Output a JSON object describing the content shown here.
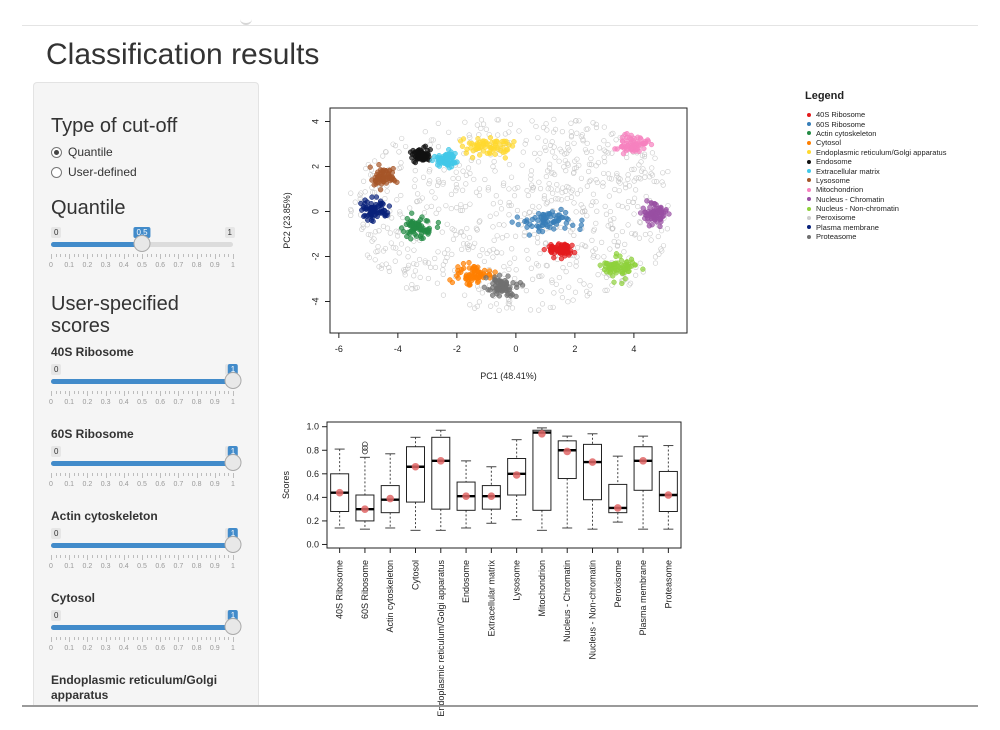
{
  "page": {
    "title": "Classification results"
  },
  "sidebar": {
    "cutoff_heading": "Type of cut-off",
    "radio_options": [
      {
        "label": "Quantile",
        "selected": true
      },
      {
        "label": "User-defined",
        "selected": false
      }
    ],
    "quantile": {
      "heading": "Quantile",
      "min": "0",
      "max": "1",
      "value": 0.5,
      "value_label": "0.5"
    },
    "user_heading": "User-specified scores",
    "score_sliders": [
      {
        "label": "40S Ribosome",
        "min": "0",
        "max": "1",
        "value": 1,
        "value_label": "1"
      },
      {
        "label": "60S Ribosome",
        "min": "0",
        "max": "1",
        "value": 1,
        "value_label": "1"
      },
      {
        "label": "Actin cytoskeleton",
        "min": "0",
        "max": "1",
        "value": 1,
        "value_label": "1"
      },
      {
        "label": "Cytosol",
        "min": "0",
        "max": "1",
        "value": 1,
        "value_label": "1"
      }
    ],
    "last_label": "Endoplasmic reticulum/Golgi apparatus",
    "grid_labels": [
      "0",
      "0.1",
      "0.2",
      "0.3",
      "0.4",
      "0.5",
      "0.6",
      "0.7",
      "0.8",
      "0.9",
      "1"
    ]
  },
  "colors": {
    "accent": "#428bca",
    "unknown_points": "#c8c8c8"
  },
  "legend": {
    "title": "Legend",
    "items": [
      {
        "label": "40S Ribosome",
        "color": "#e41a1c"
      },
      {
        "label": "60S Ribosome",
        "color": "#377eb8"
      },
      {
        "label": "Actin cytoskeleton",
        "color": "#238b45"
      },
      {
        "label": "Cytosol",
        "color": "#ff7f00"
      },
      {
        "label": "Endoplasmic reticulum/Golgi apparatus",
        "color": "#ffd92f"
      },
      {
        "label": "Endosome",
        "color": "#111111"
      },
      {
        "label": "Extracellular matrix",
        "color": "#41c8e8"
      },
      {
        "label": "Lysosome",
        "color": "#a65628"
      },
      {
        "label": "Mitochondrion",
        "color": "#f781bf"
      },
      {
        "label": "Nucleus - Chromatin",
        "color": "#984ea3"
      },
      {
        "label": "Nucleus - Non-chromatin",
        "color": "#8fd13c"
      },
      {
        "label": "Peroxisome",
        "color": "#cccccc"
      },
      {
        "label": "Plasma membrane",
        "color": "#08217a"
      },
      {
        "label": "Proteasome",
        "color": "#707070"
      }
    ]
  },
  "chart_data": [
    {
      "type": "scatter",
      "xlabel": "PC1 (48.41%)",
      "ylabel": "PC2 (23.85%)",
      "xlim": [
        -6.3,
        5.8
      ],
      "ylim": [
        -5.4,
        4.6
      ],
      "xticks": [
        -6,
        -4,
        -2,
        0,
        2,
        4
      ],
      "yticks": [
        -4,
        -2,
        0,
        2,
        4
      ],
      "grid": false,
      "series": [
        {
          "name": "40S Ribosome",
          "color": "#e41a1c",
          "center": [
            1.5,
            -1.7
          ],
          "spread": [
            0.4,
            0.3
          ]
        },
        {
          "name": "60S Ribosome",
          "color": "#377eb8",
          "center": [
            1.1,
            -0.4
          ],
          "spread": [
            0.9,
            0.45
          ]
        },
        {
          "name": "Actin cytoskeleton",
          "color": "#238b45",
          "center": [
            -3.3,
            -0.7
          ],
          "spread": [
            0.45,
            0.4
          ]
        },
        {
          "name": "Cytosol",
          "color": "#ff7f00",
          "center": [
            -1.5,
            -2.8
          ],
          "spread": [
            0.55,
            0.4
          ]
        },
        {
          "name": "Endoplasmic reticulum/Golgi apparatus",
          "color": "#ffd92f",
          "center": [
            -1.0,
            2.9
          ],
          "spread": [
            0.75,
            0.35
          ]
        },
        {
          "name": "Endosome",
          "color": "#111111",
          "center": [
            -3.2,
            2.5
          ],
          "spread": [
            0.3,
            0.25
          ]
        },
        {
          "name": "Extracellular matrix",
          "color": "#41c8e8",
          "center": [
            -2.4,
            2.3
          ],
          "spread": [
            0.35,
            0.3
          ]
        },
        {
          "name": "Lysosome",
          "color": "#a65628",
          "center": [
            -4.5,
            1.5
          ],
          "spread": [
            0.4,
            0.35
          ]
        },
        {
          "name": "Mitochondrion",
          "color": "#f781bf",
          "center": [
            4.0,
            3.0
          ],
          "spread": [
            0.4,
            0.35
          ]
        },
        {
          "name": "Nucleus - Chromatin",
          "color": "#984ea3",
          "center": [
            4.7,
            -0.1
          ],
          "spread": [
            0.35,
            0.45
          ]
        },
        {
          "name": "Nucleus - Non-chromatin",
          "color": "#8fd13c",
          "center": [
            3.5,
            -2.5
          ],
          "spread": [
            0.5,
            0.4
          ]
        },
        {
          "name": "Plasma membrane",
          "color": "#08217a",
          "center": [
            -4.8,
            0.1
          ],
          "spread": [
            0.4,
            0.45
          ]
        },
        {
          "name": "Proteasome",
          "color": "#707070",
          "center": [
            -0.5,
            -3.3
          ],
          "spread": [
            0.5,
            0.4
          ]
        }
      ]
    },
    {
      "type": "box",
      "ylabel": "Scores",
      "ylim": [
        0.0,
        1.0
      ],
      "yticks": [
        "0.0",
        "0.2",
        "0.4",
        "0.6",
        "0.8",
        "1.0"
      ],
      "categories": [
        "40S Ribosome",
        "60S Ribosome",
        "Actin cytoskeleton",
        "Cytosol",
        "Endoplasmic reticulum/Golgi apparatus",
        "Endosome",
        "Extracellular matrix",
        "Lysosome",
        "Mitochondrion",
        "Nucleus - Chromatin",
        "Nucleus - Non-chromatin",
        "Peroxisome",
        "Plasma membrane",
        "Proteasome"
      ],
      "boxes": [
        {
          "whisker_low": 0.14,
          "q1": 0.28,
          "median": 0.44,
          "q3": 0.6,
          "whisker_high": 0.81,
          "mean": 0.44,
          "outliers": []
        },
        {
          "whisker_low": 0.13,
          "q1": 0.2,
          "median": 0.3,
          "q3": 0.42,
          "whisker_high": 0.74,
          "mean": 0.3,
          "outliers": [
            0.79,
            0.82,
            0.85
          ]
        },
        {
          "whisker_low": 0.14,
          "q1": 0.27,
          "median": 0.38,
          "q3": 0.5,
          "whisker_high": 0.77,
          "mean": 0.39,
          "outliers": []
        },
        {
          "whisker_low": 0.12,
          "q1": 0.36,
          "median": 0.66,
          "q3": 0.83,
          "whisker_high": 0.91,
          "mean": 0.66,
          "outliers": []
        },
        {
          "whisker_low": 0.12,
          "q1": 0.3,
          "median": 0.71,
          "q3": 0.91,
          "whisker_high": 0.97,
          "mean": 0.71,
          "outliers": []
        },
        {
          "whisker_low": 0.14,
          "q1": 0.29,
          "median": 0.41,
          "q3": 0.53,
          "whisker_high": 0.71,
          "mean": 0.41,
          "outliers": []
        },
        {
          "whisker_low": 0.18,
          "q1": 0.3,
          "median": 0.41,
          "q3": 0.5,
          "whisker_high": 0.66,
          "mean": 0.41,
          "outliers": []
        },
        {
          "whisker_low": 0.21,
          "q1": 0.42,
          "median": 0.6,
          "q3": 0.73,
          "whisker_high": 0.89,
          "mean": 0.59,
          "outliers": []
        },
        {
          "whisker_low": 0.12,
          "q1": 0.29,
          "median": 0.95,
          "q3": 0.97,
          "whisker_high": 0.99,
          "mean": 0.94,
          "outliers": []
        },
        {
          "whisker_low": 0.14,
          "q1": 0.56,
          "median": 0.8,
          "q3": 0.88,
          "whisker_high": 0.92,
          "mean": 0.79,
          "outliers": []
        },
        {
          "whisker_low": 0.13,
          "q1": 0.38,
          "median": 0.7,
          "q3": 0.85,
          "whisker_high": 0.94,
          "mean": 0.7,
          "outliers": []
        },
        {
          "whisker_low": 0.19,
          "q1": 0.27,
          "median": 0.31,
          "q3": 0.51,
          "whisker_high": 0.75,
          "mean": 0.31,
          "outliers": []
        },
        {
          "whisker_low": 0.13,
          "q1": 0.46,
          "median": 0.71,
          "q3": 0.83,
          "whisker_high": 0.92,
          "mean": 0.71,
          "outliers": []
        },
        {
          "whisker_low": 0.13,
          "q1": 0.28,
          "median": 0.42,
          "q3": 0.62,
          "whisker_high": 0.84,
          "mean": 0.42,
          "outliers": []
        }
      ]
    }
  ]
}
